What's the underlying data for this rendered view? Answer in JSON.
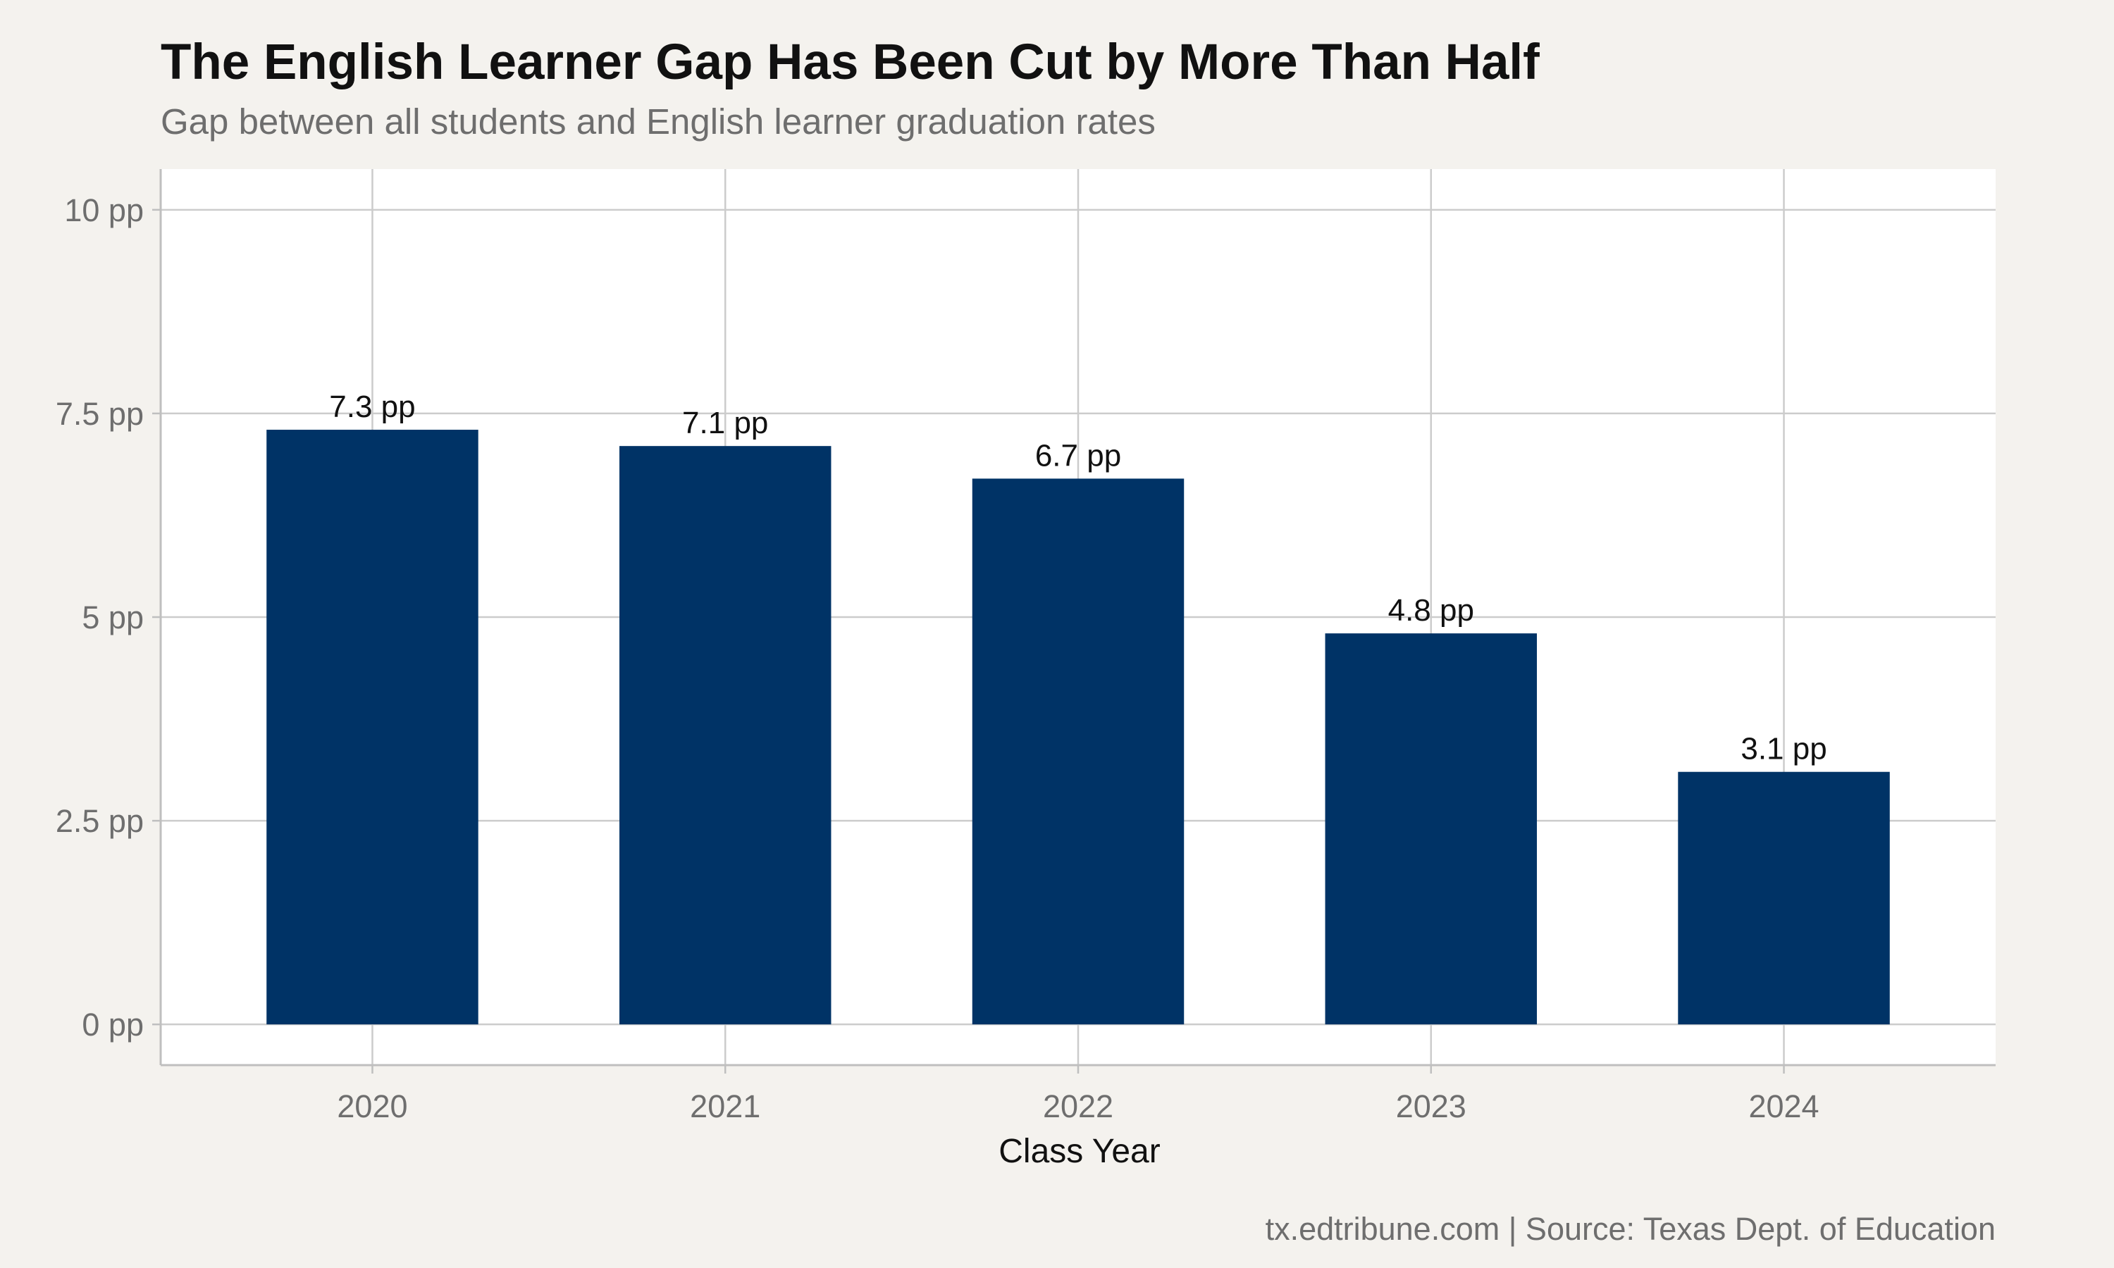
{
  "chart_data": {
    "type": "bar",
    "title": "The English Learner Gap Has Been Cut by More Than Half",
    "subtitle": "Gap between all students and English learner graduation rates",
    "xlabel": "Class Year",
    "ylabel": "",
    "categories": [
      "2020",
      "2021",
      "2022",
      "2023",
      "2024"
    ],
    "values": [
      7.3,
      7.1,
      6.7,
      4.8,
      3.1
    ],
    "data_labels": [
      "7.3 pp",
      "7.1 pp",
      "6.7 pp",
      "4.8 pp",
      "3.1 pp"
    ],
    "ylim": [
      -0.5,
      10.5
    ],
    "yticks": [
      0,
      2.5,
      5,
      7.5,
      10
    ],
    "ytick_labels": [
      "0 pp",
      "2.5 pp",
      "5 pp",
      "7.5 pp",
      "10 pp"
    ],
    "grid": true,
    "legend": "none",
    "caption": "tx.edtribune.com | Source: Texas Dept. of Education",
    "colors": {
      "background": "#f4f2ee",
      "panel": "#ffffff",
      "bar": "#003366",
      "grid": "#cccccc",
      "axis": "#bfbfbf"
    }
  }
}
